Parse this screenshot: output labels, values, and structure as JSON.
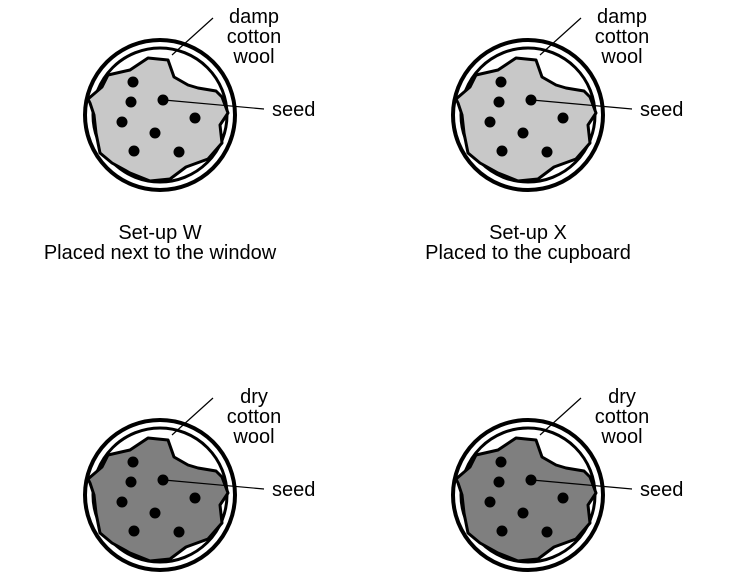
{
  "setups": [
    {
      "wool_label": [
        "damp",
        "cotton",
        "wool"
      ],
      "seed_label": "seed",
      "caption": [
        "Set-up W",
        "Placed next to the window"
      ],
      "wool_color": "#c8c8c8"
    },
    {
      "wool_label": [
        "damp",
        "cotton",
        "wool"
      ],
      "seed_label": "seed",
      "caption": [
        "Set-up X",
        "Placed to the cupboard"
      ],
      "wool_color": "#c8c8c8"
    },
    {
      "wool_label": [
        "dry",
        "cotton",
        "wool"
      ],
      "seed_label": "seed",
      "caption": [],
      "wool_color": "#7f7f7f"
    },
    {
      "wool_label": [
        "dry",
        "cotton",
        "wool"
      ],
      "seed_label": "seed",
      "caption": [],
      "wool_color": "#7f7f7f"
    }
  ]
}
